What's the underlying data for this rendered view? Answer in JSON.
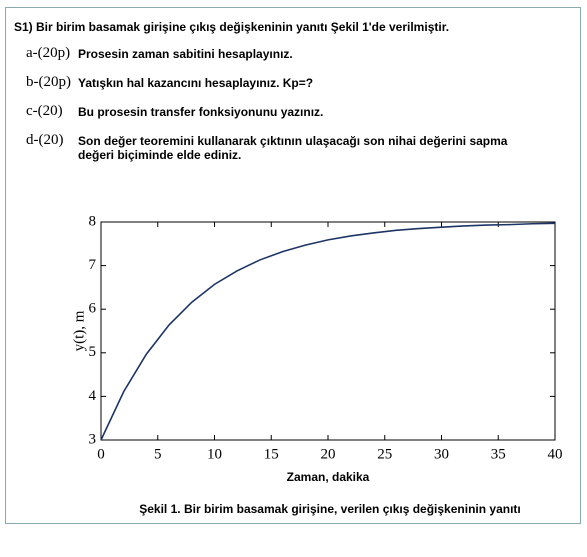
{
  "header": {
    "title": "S1) Bir birim basamak girişine çıkış değişkeninin yanıtı Şekil 1'de verilmiştir."
  },
  "questions": [
    {
      "label": "a-(20p)",
      "lines": [
        "Prosesin zaman sabitini hesaplayınız."
      ]
    },
    {
      "label": "b-(20p)",
      "lines": [
        "Yatışkın hal kazancını hesaplayınız.  Kp=?"
      ]
    },
    {
      "label": "c-(20)",
      "lines": [
        "Bu prosesin transfer fonksiyonunu yazınız."
      ]
    },
    {
      "label": "d-(20)",
      "lines": [
        "Son değer teoremini kullanarak çıktının ulaşacağı son nihai değerini sapma",
        "değeri  biçiminde elde ediniz."
      ]
    }
  ],
  "figure": {
    "caption": "Şekil 1. Bir birim basamak girişine, verilen çıkış değişkeninin yanıtı"
  },
  "chart_data": {
    "type": "line",
    "x_label": "Zaman, dakika",
    "y_label": "y(t), m",
    "x": [
      0,
      2,
      4,
      6,
      8,
      10,
      12,
      14,
      16,
      18,
      20,
      22,
      24,
      26,
      28,
      30,
      32,
      34,
      36,
      38,
      40
    ],
    "values": [
      3,
      4.11,
      4.97,
      5.64,
      6.16,
      6.57,
      6.88,
      7.13,
      7.32,
      7.47,
      7.59,
      7.68,
      7.75,
      7.81,
      7.85,
      7.88,
      7.91,
      7.93,
      7.94,
      7.96,
      7.97
    ],
    "color": "#1c3566",
    "xlim": [
      0,
      40
    ],
    "ylim": [
      3,
      8
    ],
    "xticks": [
      0,
      5,
      10,
      15,
      20,
      25,
      30,
      35,
      40
    ],
    "yticks": [
      3,
      4,
      5,
      6,
      7,
      8
    ],
    "grid": false
  }
}
